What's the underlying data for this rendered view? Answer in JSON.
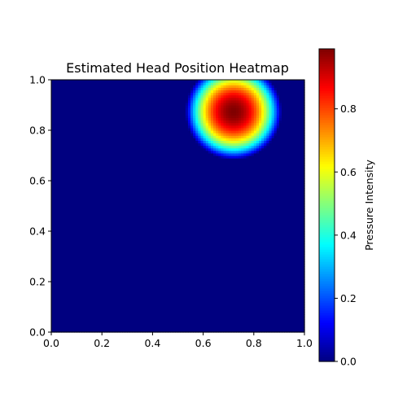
{
  "chart_data": {
    "type": "heatmap",
    "title": "Estimated Head Position Heatmap",
    "xlabel": "",
    "ylabel": "",
    "xlim": [
      0.0,
      1.0
    ],
    "ylim": [
      0.0,
      1.0
    ],
    "x_ticks": [
      "0.0",
      "0.2",
      "0.4",
      "0.6",
      "0.8",
      "1.0"
    ],
    "y_ticks": [
      "0.0",
      "0.2",
      "0.4",
      "0.6",
      "0.8",
      "1.0"
    ],
    "colormap": "jet",
    "grid": false,
    "blob": {
      "center_x": 0.72,
      "center_y": 0.875,
      "radius": 0.19,
      "peak": 0.99
    },
    "colorbar": {
      "label": "Pressure Intensity",
      "range": [
        0.0,
        0.99
      ],
      "ticks": [
        "0.0",
        "0.2",
        "0.4",
        "0.6",
        "0.8"
      ]
    }
  }
}
